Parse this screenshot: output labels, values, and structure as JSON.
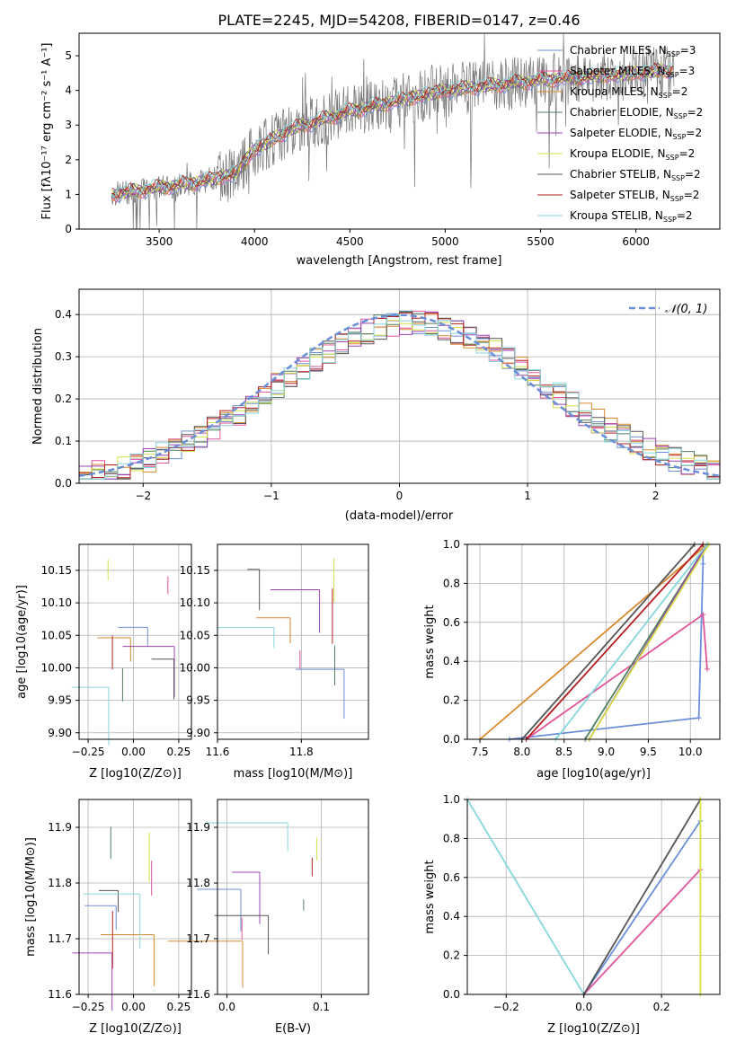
{
  "title": "PLATE=2245, MJD=54208, FIBERID=0147, z=0.46",
  "colors": {
    "Chabrier MILES": "#6a8fd8",
    "Salpeter MILES": "#e0559a",
    "Kroupa MILES": "#d98a2e",
    "Chabrier ELODIE": "#4f7f5f",
    "Salpeter ELODIE": "#9b44b8",
    "Kroupa ELODIE": "#d4e04a",
    "Chabrier STELIB": "#555555",
    "Salpeter STELIB": "#b51f1f",
    "Kroupa STELIB": "#86d6dc"
  },
  "chart_data": [
    {
      "type": "line",
      "title": "PLATE=2245, MJD=54208, FIBERID=0147, z=0.46",
      "xlabel": "wavelength [Angstrom, rest frame]",
      "ylabel": "Flux [fλ10⁻¹⁷ erg cm⁻² s⁻¹ A⁻¹]",
      "xlim": [
        3080,
        6440
      ],
      "ylim": [
        0,
        5.65
      ],
      "xticks": [
        3500,
        4000,
        4500,
        5000,
        5500,
        6000
      ],
      "yticks": [
        0,
        1,
        2,
        3,
        4,
        5
      ],
      "grid": false,
      "legend": "top-right",
      "data_series_name": "",
      "continuum": [
        [
          3250,
          1.0
        ],
        [
          3500,
          1.2
        ],
        [
          3700,
          1.35
        ],
        [
          3900,
          1.6
        ],
        [
          4000,
          2.3
        ],
        [
          4200,
          2.9
        ],
        [
          4500,
          3.4
        ],
        [
          5000,
          4.0
        ],
        [
          5500,
          4.3
        ],
        [
          6000,
          4.5
        ],
        [
          6200,
          4.6
        ]
      ],
      "legend_entries": [
        {
          "name": "Chabrier MILES",
          "nssp": "=3"
        },
        {
          "name": "Salpeter MILES",
          "nssp": "=3"
        },
        {
          "name": "Kroupa MILES",
          "nssp": "=2"
        },
        {
          "name": "Chabrier ELODIE",
          "nssp": "=2"
        },
        {
          "name": "Salpeter ELODIE",
          "nssp": "=2"
        },
        {
          "name": "Kroupa ELODIE",
          "nssp": "=2"
        },
        {
          "name": "Chabrier STELIB",
          "nssp": "=2"
        },
        {
          "name": "Salpeter STELIB",
          "nssp": "=2"
        },
        {
          "name": "Kroupa STELIB",
          "nssp": "=2"
        }
      ]
    },
    {
      "type": "line",
      "xlabel": "(data-model)/error",
      "ylabel": "Normed distribution",
      "xlim": [
        -2.5,
        2.5
      ],
      "ylim": [
        0,
        0.46
      ],
      "xticks": [
        -2,
        -1,
        0,
        1,
        2
      ],
      "yticks": [
        0.0,
        0.1,
        0.2,
        0.3,
        0.4
      ],
      "grid": true,
      "legend": "top-right",
      "legend_label": "𝒩(0, 1)",
      "bin_width": 0.1
    },
    {
      "type": "line",
      "xlabel": "Z [log10(Z/Z⊙)]",
      "ylabel": "age  [log10(age/yr)]",
      "xlim": [
        -0.3,
        0.32
      ],
      "ylim": [
        9.89,
        10.19
      ],
      "xticks": [
        -0.25,
        0.0,
        0.25
      ],
      "yticks": [
        9.9,
        9.95,
        10.0,
        10.05,
        10.1,
        10.15
      ],
      "grid": true
    },
    {
      "type": "line",
      "xlabel": "mass [log10(M/M⊙)]",
      "xlim": [
        11.6,
        11.96
      ],
      "ylim": [
        9.89,
        10.19
      ],
      "xticks": [
        11.6,
        11.8
      ],
      "yticks": [
        9.9,
        9.95,
        10.0,
        10.05,
        10.1,
        10.15
      ],
      "grid": true
    },
    {
      "type": "line",
      "xlabel": "age  [log10(age/yr)]",
      "ylabel": "mass weight",
      "xlim": [
        7.35,
        10.35
      ],
      "ylim": [
        0,
        1
      ],
      "xticks": [
        7.5,
        8.0,
        8.5,
        9.0,
        9.5,
        10.0
      ],
      "yticks": [
        0.0,
        0.2,
        0.4,
        0.6,
        0.8,
        1.0
      ],
      "grid": true,
      "series": [
        {
          "name": "Chabrier MILES",
          "x": [
            7.85,
            10.1,
            10.15,
            10.15
          ],
          "y": [
            0,
            0.11,
            0.9,
            1.0
          ]
        },
        {
          "name": "Salpeter MILES",
          "x": [
            8.05,
            10.15,
            10.2
          ],
          "y": [
            0,
            0.64,
            0.36
          ]
        },
        {
          "name": "Kroupa MILES",
          "x": [
            7.5,
            10.2
          ],
          "y": [
            0,
            1.0
          ]
        },
        {
          "name": "Chabrier ELODIE",
          "x": [
            8.75,
            10.2
          ],
          "y": [
            0,
            1.0
          ]
        },
        {
          "name": "Salpeter ELODIE",
          "x": [
            8.8,
            10.2
          ],
          "y": [
            0,
            1.0
          ]
        },
        {
          "name": "Kroupa ELODIE",
          "x": [
            8.8,
            10.22
          ],
          "y": [
            0,
            1.0
          ]
        },
        {
          "name": "Chabrier STELIB",
          "x": [
            8.0,
            10.05
          ],
          "y": [
            0,
            1.0
          ]
        },
        {
          "name": "Salpeter STELIB",
          "x": [
            8.05,
            10.15
          ],
          "y": [
            0,
            1.0
          ]
        },
        {
          "name": "Kroupa STELIB",
          "x": [
            8.4,
            10.2
          ],
          "y": [
            0,
            1.0
          ]
        }
      ]
    },
    {
      "type": "line",
      "xlabel": "Z [log10(Z/Z⊙)]",
      "ylabel": "mass [log10(M/M⊙)]",
      "xlim": [
        -0.3,
        0.32
      ],
      "ylim": [
        11.6,
        11.95
      ],
      "xticks": [
        -0.25,
        0.0,
        0.25
      ],
      "yticks": [
        11.6,
        11.7,
        11.8,
        11.9
      ],
      "grid": true
    },
    {
      "type": "line",
      "xlabel": "E(B-V)",
      "xlim": [
        -0.01,
        0.15
      ],
      "ylim": [
        11.6,
        11.95
      ],
      "xticks": [
        0.0,
        0.1
      ],
      "yticks": [
        11.6,
        11.7,
        11.8,
        11.9
      ],
      "grid": true
    },
    {
      "type": "line",
      "xlabel": "Z [log10(Z/Z⊙)]",
      "ylabel": "mass weight",
      "xlim": [
        -0.3,
        0.35
      ],
      "ylim": [
        0,
        1
      ],
      "xticks": [
        -0.2,
        0.0,
        0.2
      ],
      "yticks": [
        0.0,
        0.2,
        0.4,
        0.6,
        0.8,
        1.0
      ],
      "grid": true,
      "series": [
        {
          "name": "Chabrier MILES",
          "x": [
            0.0,
            0.3
          ],
          "y": [
            0,
            0.89
          ]
        },
        {
          "name": "Salpeter MILES",
          "x": [
            0.0,
            0.3
          ],
          "y": [
            0,
            0.64
          ]
        },
        {
          "name": "Kroupa STELIB",
          "x": [
            -0.3,
            0.0
          ],
          "y": [
            1.0,
            0
          ]
        },
        {
          "name": "Chabrier STELIB",
          "x": [
            0.0,
            0.3
          ],
          "y": [
            0,
            1.0
          ]
        },
        {
          "name": "Kroupa ELODIE",
          "x": [
            0.3,
            0.3
          ],
          "y": [
            0,
            1.0
          ]
        }
      ]
    }
  ]
}
